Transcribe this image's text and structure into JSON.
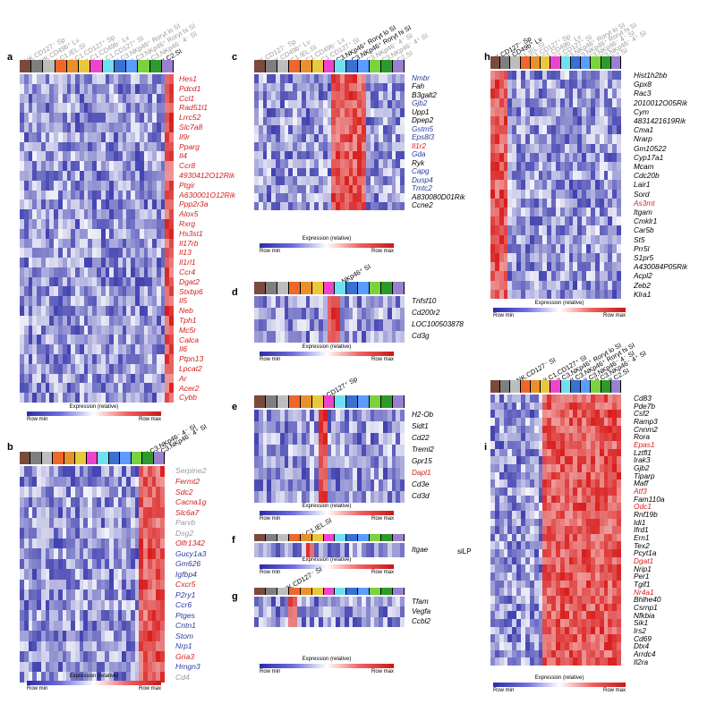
{
  "colors": {
    "low": "#2c2ca8",
    "high": "#d91c1c",
    "red_gene": "#d62020",
    "blue_gene": "#2b3aa0",
    "gray_gene": "#9a9a9a",
    "black_gene": "#000000",
    "groups": [
      "#7a4a3c",
      "#7f7f7f",
      "#bdbdbd",
      "#f0672c",
      "#e8902e",
      "#e8c83c",
      "#ee44cc",
      "#6fe0f0",
      "#3a70d0",
      "#5a9cff",
      "#7ad23c",
      "#2e9a2e",
      "#9a80d0"
    ]
  },
  "legend": {
    "title": "Expression (relative)",
    "min": "Row min",
    "max": "Row max"
  },
  "panels": [
    {
      "id": "a",
      "label": "a",
      "col_labels": [
        {
          "text": "NK.CD127⁻ Sp",
          "dark": false
        },
        {
          "text": "NK.CD49b⁺ Lv",
          "dark": false
        },
        {
          "text": "ILC1.IEL.SI",
          "dark": false
        },
        {
          "text": "ILC1.CD127⁺ Sp",
          "dark": false
        },
        {
          "text": "ILC1.CD49b⁻ Lv",
          "dark": false
        },
        {
          "text": "ILC1.CD127⁺ SI",
          "dark": false
        },
        {
          "text": "ILC3.NKp46⁺ Rorγt lo SI",
          "dark": false
        },
        {
          "text": "ILC3.NKp46⁺ Rorγt hi SI",
          "dark": false
        },
        {
          "text": "ILC3.NKp46⁻ 4⁻ SI",
          "dark": false
        },
        {
          "text": "ILC2.SI",
          "dark": true
        }
      ],
      "genes": [
        {
          "name": "Hes1",
          "color": "red"
        },
        {
          "name": "Pdcd1",
          "color": "red"
        },
        {
          "name": "Ccl1",
          "color": "red"
        },
        {
          "name": "Rad51l1",
          "color": "red"
        },
        {
          "name": "Lrrc52",
          "color": "red"
        },
        {
          "name": "Slc7a8",
          "color": "red"
        },
        {
          "name": "Il9r",
          "color": "red"
        },
        {
          "name": "Pparg",
          "color": "red"
        },
        {
          "name": "Il4",
          "color": "red"
        },
        {
          "name": "Ccr8",
          "color": "red"
        },
        {
          "name": "4930412O12Rik",
          "color": "red"
        },
        {
          "name": "Ptgir",
          "color": "red"
        },
        {
          "name": "A630001O12Rik",
          "color": "red"
        },
        {
          "name": "Ppp2r3a",
          "color": "red"
        },
        {
          "name": "Alox5",
          "color": "red"
        },
        {
          "name": "Rxrg",
          "color": "red"
        },
        {
          "name": "Hs3st1",
          "color": "red"
        },
        {
          "name": "Il17rb",
          "color": "red"
        },
        {
          "name": "Il13",
          "color": "red"
        },
        {
          "name": "Il1rl1",
          "color": "red"
        },
        {
          "name": "Ccr4",
          "color": "red"
        },
        {
          "name": "Dgat2",
          "color": "red"
        },
        {
          "name": "Stxbp6",
          "color": "red"
        },
        {
          "name": "Il5",
          "color": "red"
        },
        {
          "name": "Neb",
          "color": "red"
        },
        {
          "name": "Tph1",
          "color": "red"
        },
        {
          "name": "Mc5r",
          "color": "red"
        },
        {
          "name": "Calca",
          "color": "red"
        },
        {
          "name": "Il6",
          "color": "red"
        },
        {
          "name": "Ptpn13",
          "color": "red"
        },
        {
          "name": "Lpcat2",
          "color": "red"
        },
        {
          "name": "Ar",
          "color": "red"
        },
        {
          "name": "Acer2",
          "color": "red"
        },
        {
          "name": "Cybb",
          "color": "red"
        }
      ]
    },
    {
      "id": "b",
      "label": "b",
      "col_labels": [
        {
          "text": "ILC3.NKp46⁻ 4⁻ SI",
          "dark": true
        },
        {
          "text": "ILC3.NKp46⁻ 4⁺ SI",
          "dark": true
        }
      ],
      "genes": [
        {
          "name": "Serpine2",
          "color": "gray"
        },
        {
          "name": "Fermt2",
          "color": "red"
        },
        {
          "name": "Sdc2",
          "color": "red"
        },
        {
          "name": "Cacna1g",
          "color": "red"
        },
        {
          "name": "Slc6a7",
          "color": "red"
        },
        {
          "name": "Parvb",
          "color": "gray"
        },
        {
          "name": "Dsg2",
          "color": "gray"
        },
        {
          "name": "Olfr1342",
          "color": "red"
        },
        {
          "name": "Gucy1a3",
          "color": "blue"
        },
        {
          "name": "Gm626",
          "color": "blue"
        },
        {
          "name": "Igfbp4",
          "color": "blue"
        },
        {
          "name": "Cxcr5",
          "color": "red"
        },
        {
          "name": "P2ry1",
          "color": "blue"
        },
        {
          "name": "Ccr6",
          "color": "blue"
        },
        {
          "name": "Ptges",
          "color": "blue"
        },
        {
          "name": "Cntn1",
          "color": "blue"
        },
        {
          "name": "Stom",
          "color": "blue"
        },
        {
          "name": "Nrp1",
          "color": "blue"
        },
        {
          "name": "Gria3",
          "color": "red"
        },
        {
          "name": "Hmgn3",
          "color": "blue"
        },
        {
          "name": "Cd4",
          "color": "gray"
        }
      ]
    },
    {
      "id": "c",
      "label": "c",
      "col_labels": [
        {
          "text": "NK.CD127⁻ Sp",
          "dark": false
        },
        {
          "text": "NK.CD49b⁺ Lv",
          "dark": false
        },
        {
          "text": "ILC1.IEL.SI",
          "dark": false
        },
        {
          "text": "ILC1.CD49b⁻ Lv",
          "dark": false
        },
        {
          "text": "ILC1.CD127⁺ SI",
          "dark": false
        },
        {
          "text": "ILC3.NKp46⁺ Rorγt lo SI",
          "dark": true
        },
        {
          "text": "ILC3.NKp46⁺ Rorγt hi SI",
          "dark": true
        },
        {
          "text": "ILC3.NKp46⁻ 4⁻ SI",
          "dark": false
        },
        {
          "text": "ILC3.NKp46⁻ 4⁺ SI",
          "dark": false
        },
        {
          "text": "ILC2.SI",
          "dark": false
        }
      ],
      "genes": [
        {
          "name": "Nmbr",
          "color": "blue"
        },
        {
          "name": "Fah",
          "color": "black"
        },
        {
          "name": "B3galt2",
          "color": "black"
        },
        {
          "name": "Gjb2",
          "color": "blue"
        },
        {
          "name": "Upp1",
          "color": "black"
        },
        {
          "name": "Dpep2",
          "color": "black"
        },
        {
          "name": "Gstm5",
          "color": "blue"
        },
        {
          "name": "Eps8l3",
          "color": "blue"
        },
        {
          "name": "Il1r2",
          "color": "red"
        },
        {
          "name": "Gda",
          "color": "blue"
        },
        {
          "name": "Ryk",
          "color": "black"
        },
        {
          "name": "Capg",
          "color": "blue"
        },
        {
          "name": "Dusp4",
          "color": "blue"
        },
        {
          "name": "Tmtc2",
          "color": "blue"
        },
        {
          "name": "A830080D01Rik",
          "color": "black"
        },
        {
          "name": "Ccne2",
          "color": "black"
        }
      ]
    },
    {
      "id": "d",
      "label": "d",
      "col_labels": [
        {
          "text": "ILC1.NKp46⁺ SI",
          "dark": true
        }
      ],
      "genes": [
        {
          "name": "Tnfsf10",
          "color": "black"
        },
        {
          "name": "Cd200r2",
          "color": "black"
        },
        {
          "name": "LOC100503878",
          "color": "black"
        },
        {
          "name": "Cd3g",
          "color": "black"
        }
      ]
    },
    {
      "id": "e",
      "label": "e",
      "col_labels": [
        {
          "text": "ILC1.CD127⁺ Sp",
          "dark": true
        }
      ],
      "genes": [
        {
          "name": "H2-Ob",
          "color": "black"
        },
        {
          "name": "Sidt1",
          "color": "black"
        },
        {
          "name": "Cd22",
          "color": "black"
        },
        {
          "name": "Treml2",
          "color": "black"
        },
        {
          "name": "Gpr15",
          "color": "black"
        },
        {
          "name": "Dapl1",
          "color": "red"
        },
        {
          "name": "Cd3e",
          "color": "black"
        },
        {
          "name": "Cd3d",
          "color": "black"
        }
      ]
    },
    {
      "id": "f",
      "label": "f",
      "col_labels": [
        {
          "text": "ILC1.IEL.SI",
          "dark": true
        }
      ],
      "genes": [
        {
          "name": "Itgae",
          "color": "black"
        }
      ]
    },
    {
      "id": "g",
      "label": "g",
      "col_labels": [
        {
          "text": "NK.CD127⁻ SI",
          "dark": true
        }
      ],
      "genes": [
        {
          "name": "Tfam",
          "color": "black"
        },
        {
          "name": "Vegfa",
          "color": "black"
        },
        {
          "name": "Ccbl2",
          "color": "black"
        }
      ]
    },
    {
      "id": "h",
      "label": "h",
      "col_labels": [
        {
          "text": "NK.CD127⁻ Sp",
          "dark": true
        },
        {
          "text": "NK.CD49b⁺ Lv",
          "dark": true
        },
        {
          "text": "ILC1.IEL.SI",
          "dark": false
        },
        {
          "text": "ILC1.CD127⁺ Sp",
          "dark": false
        },
        {
          "text": "ILC1.CD49b⁻ Lv",
          "dark": false
        },
        {
          "text": "ILC1.CD127⁺ SI",
          "dark": false
        },
        {
          "text": "ILC3.NKp46⁺ Rorγt lo SI",
          "dark": false
        },
        {
          "text": "ILC3.NKp46⁺ Rorγt hi SI",
          "dark": false
        },
        {
          "text": "ILC3.NKp46⁻ 4⁻ SI",
          "dark": false
        },
        {
          "text": "ILC3.NKp46⁻ 4⁺ SI",
          "dark": false
        },
        {
          "text": "ILC2.SI",
          "dark": false
        }
      ],
      "genes": [
        {
          "name": "Hist1h2bb",
          "color": "black"
        },
        {
          "name": "Gpx8",
          "color": "black"
        },
        {
          "name": "Rac3",
          "color": "black"
        },
        {
          "name": "2010012O05Rik",
          "color": "black"
        },
        {
          "name": "Cym",
          "color": "black"
        },
        {
          "name": "4831421619Rik",
          "color": "black"
        },
        {
          "name": "Cma1",
          "color": "black"
        },
        {
          "name": "Nrarp",
          "color": "black"
        },
        {
          "name": "Gm10522",
          "color": "black"
        },
        {
          "name": "Cyp17a1",
          "color": "black"
        },
        {
          "name": "Mcam",
          "color": "black"
        },
        {
          "name": "Cdc20b",
          "color": "black"
        },
        {
          "name": "Lair1",
          "color": "black"
        },
        {
          "name": "Sord",
          "color": "black"
        },
        {
          "name": "As3mt",
          "color": "red"
        },
        {
          "name": "Itgam",
          "color": "black"
        },
        {
          "name": "Cmklr1",
          "color": "black"
        },
        {
          "name": "Car5b",
          "color": "black"
        },
        {
          "name": "St5",
          "color": "black"
        },
        {
          "name": "Prr5l",
          "color": "black"
        },
        {
          "name": "S1pr5",
          "color": "black"
        },
        {
          "name": "A430084P05Rik",
          "color": "black"
        },
        {
          "name": "Acpl2",
          "color": "black"
        },
        {
          "name": "Zeb2",
          "color": "black"
        },
        {
          "name": "Klra1",
          "color": "black"
        }
      ]
    },
    {
      "id": "i",
      "label": "i",
      "side_label": "siLP",
      "col_labels": [
        {
          "text": "NK.CD127⁻ SI",
          "dark": true
        },
        {
          "text": "ILC1.CD127⁺ SI",
          "dark": true
        },
        {
          "text": "ILC3.NKp46⁺ Rorγt lo SI",
          "dark": true
        },
        {
          "text": "ILC3.NKp46⁺ Rorγt hi SI",
          "dark": true
        },
        {
          "text": "ILC3.NKp46⁻ 4⁻ SI",
          "dark": true
        },
        {
          "text": "ILC3.NKp46⁻ 4⁺ SI",
          "dark": true
        },
        {
          "text": "ILC2.SI",
          "dark": true
        }
      ],
      "genes": [
        {
          "name": "Cd83",
          "color": "black"
        },
        {
          "name": "Pde7b",
          "color": "black"
        },
        {
          "name": "Csf2",
          "color": "black"
        },
        {
          "name": "Ramp3",
          "color": "black"
        },
        {
          "name": "Cnnm2",
          "color": "black"
        },
        {
          "name": "Rora",
          "color": "black"
        },
        {
          "name": "Epas1",
          "color": "red"
        },
        {
          "name": "Lztfl1",
          "color": "black"
        },
        {
          "name": "Irak3",
          "color": "black"
        },
        {
          "name": "Gjb2",
          "color": "black"
        },
        {
          "name": "Tiparp",
          "color": "black"
        },
        {
          "name": "Maff",
          "color": "black"
        },
        {
          "name": "Atf3",
          "color": "red"
        },
        {
          "name": "Fam110a",
          "color": "black"
        },
        {
          "name": "Odc1",
          "color": "red"
        },
        {
          "name": "Rnf19b",
          "color": "black"
        },
        {
          "name": "Idi1",
          "color": "black"
        },
        {
          "name": "Ifrd1",
          "color": "black"
        },
        {
          "name": "Ern1",
          "color": "black"
        },
        {
          "name": "Tex2",
          "color": "black"
        },
        {
          "name": "Pcyt1a",
          "color": "black"
        },
        {
          "name": "Dgat1",
          "color": "red"
        },
        {
          "name": "Nrip1",
          "color": "black"
        },
        {
          "name": "Per1",
          "color": "black"
        },
        {
          "name": "Tgif1",
          "color": "black"
        },
        {
          "name": "Nr4a1",
          "color": "red"
        },
        {
          "name": "Bhlhe40",
          "color": "black"
        },
        {
          "name": "Csrnp1",
          "color": "black"
        },
        {
          "name": "Nfkbia",
          "color": "black"
        },
        {
          "name": "Sik1",
          "color": "black"
        },
        {
          "name": "Irs2",
          "color": "black"
        },
        {
          "name": "Cd69",
          "color": "black"
        },
        {
          "name": "Dtx4",
          "color": "black"
        },
        {
          "name": "Arrdc4",
          "color": "black"
        },
        {
          "name": "Il2ra",
          "color": "black"
        }
      ]
    }
  ]
}
